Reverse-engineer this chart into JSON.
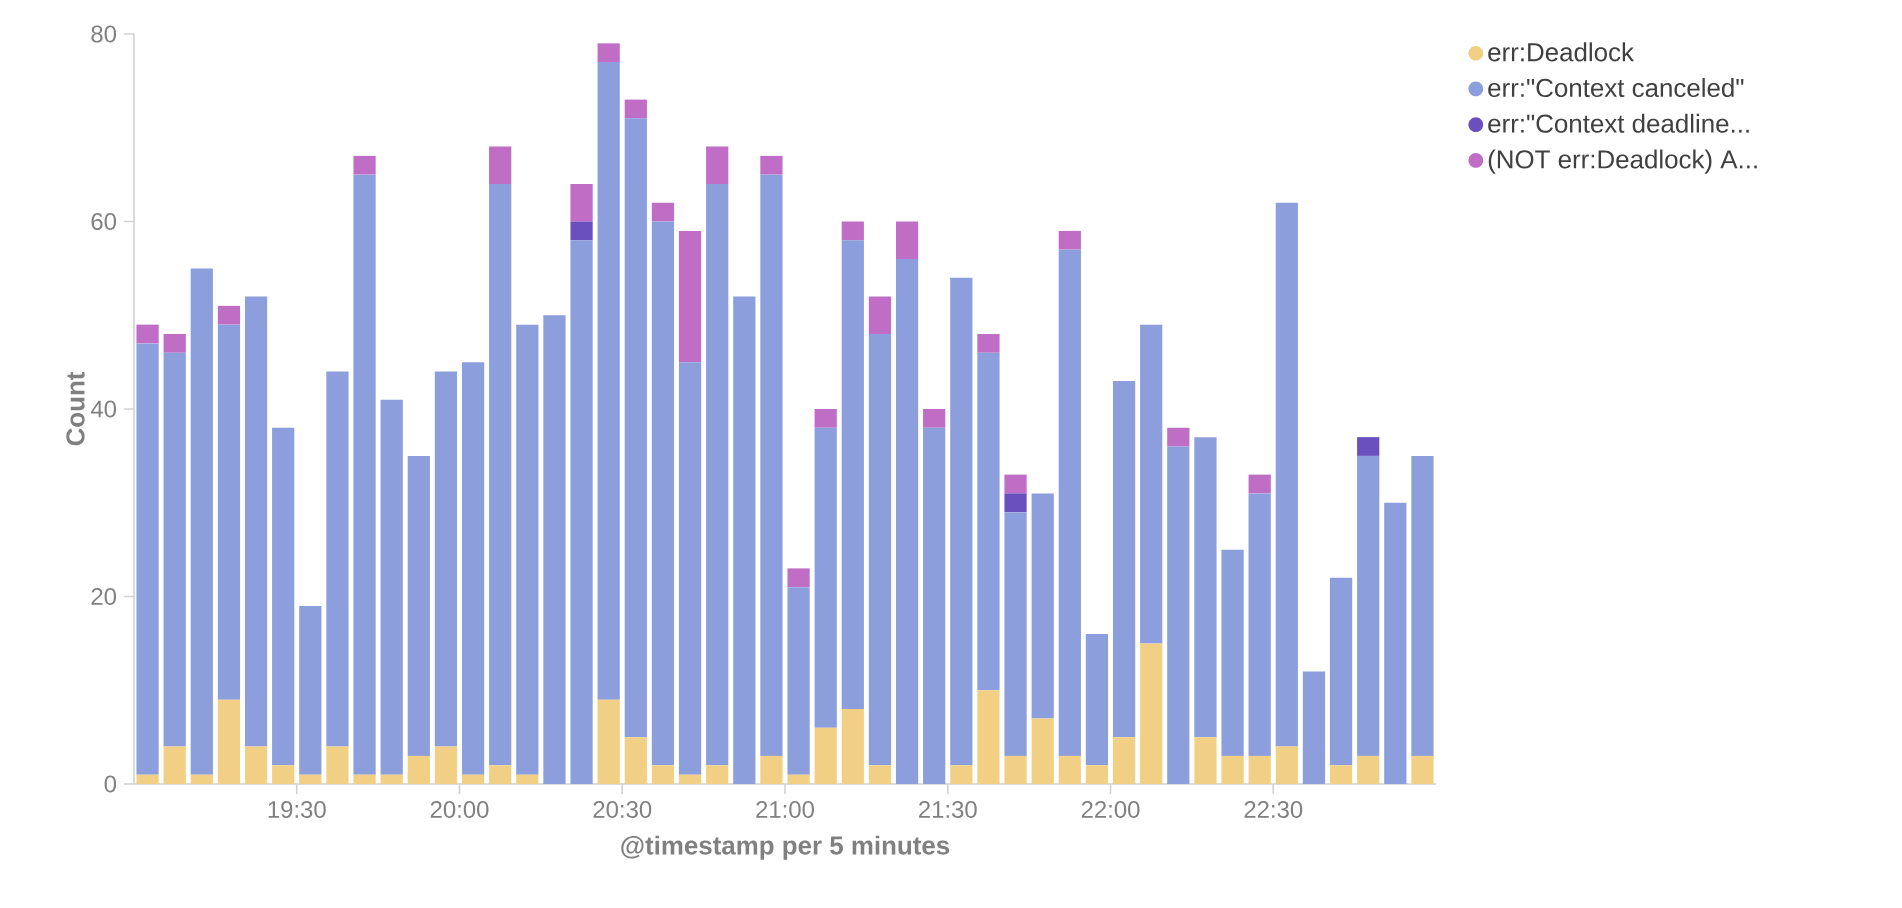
{
  "chart_data": {
    "type": "bar",
    "stacked": true,
    "xlabel": "@timestamp per 5 minutes",
    "ylabel": "Count",
    "x": [
      19.0417,
      19.125,
      19.2083,
      19.2917,
      19.375,
      19.4583,
      19.5417,
      19.625,
      19.7083,
      19.7917,
      19.875,
      19.9583,
      20.0417,
      20.125,
      20.2083,
      20.2917,
      20.375,
      20.4583,
      20.5417,
      20.625,
      20.7083,
      20.7917,
      20.875,
      20.9583,
      21.0417,
      21.125,
      21.2083,
      21.2917,
      21.375,
      21.4583,
      21.5417,
      21.625,
      21.7083,
      21.7917,
      21.875,
      21.9583,
      22.0417,
      22.125,
      22.2083,
      22.2917,
      22.375,
      22.4583,
      22.5417,
      22.625,
      22.7083,
      22.7917,
      22.875,
      22.9583
    ],
    "series": [
      {
        "name": "err:Deadlock",
        "color": "#f1d086",
        "values": [
          1,
          4,
          1,
          9,
          4,
          2,
          1,
          4,
          1,
          1,
          3,
          4,
          1,
          2,
          1,
          0,
          0,
          9,
          5,
          2,
          1,
          2,
          0,
          3,
          1,
          6,
          8,
          2,
          0,
          0,
          2,
          10,
          3,
          7,
          3,
          2,
          5,
          15,
          0,
          5,
          3,
          3,
          4,
          0,
          2,
          3,
          0,
          3
        ]
      },
      {
        "name": "err:\"Context canceled\"",
        "color": "#8c9edb",
        "values": [
          46,
          42,
          54,
          40,
          48,
          36,
          18,
          40,
          64,
          40,
          32,
          40,
          44,
          62,
          48,
          50,
          58,
          68,
          66,
          58,
          44,
          62,
          52,
          62,
          20,
          32,
          50,
          46,
          56,
          38,
          52,
          36,
          26,
          24,
          54,
          14,
          38,
          34,
          36,
          32,
          22,
          28,
          58,
          12,
          20,
          32,
          30,
          32
        ]
      },
      {
        "name": "err:\"Context deadline...",
        "color": "#6a4fbf",
        "values": [
          0,
          0,
          0,
          0,
          0,
          0,
          0,
          0,
          0,
          0,
          0,
          0,
          0,
          0,
          0,
          0,
          2,
          0,
          0,
          0,
          0,
          0,
          0,
          0,
          0,
          0,
          0,
          0,
          0,
          0,
          0,
          0,
          2,
          0,
          0,
          0,
          0,
          0,
          0,
          0,
          0,
          0,
          0,
          0,
          0,
          2,
          0,
          0
        ]
      },
      {
        "name": "(NOT err:Deadlock) A...",
        "color": "#c06dc6",
        "values": [
          2,
          2,
          0,
          2,
          0,
          0,
          0,
          0,
          2,
          0,
          0,
          0,
          0,
          4,
          0,
          0,
          4,
          2,
          2,
          2,
          14,
          4,
          0,
          2,
          2,
          2,
          2,
          4,
          4,
          2,
          0,
          2,
          2,
          0,
          2,
          0,
          0,
          0,
          2,
          0,
          0,
          2,
          0,
          0,
          0,
          0,
          0,
          0
        ]
      }
    ],
    "xlim": [
      19,
      23
    ],
    "ylim": [
      0,
      80
    ],
    "xticks": [
      {
        "value": 19.5,
        "label": "19:30"
      },
      {
        "value": 20,
        "label": "20:00"
      },
      {
        "value": 20.5,
        "label": "20:30"
      },
      {
        "value": 21,
        "label": "21:00"
      },
      {
        "value": 21.5,
        "label": "21:30"
      },
      {
        "value": 22,
        "label": "22:00"
      },
      {
        "value": 22.5,
        "label": "22:30"
      }
    ],
    "yticks": [
      0,
      20,
      40,
      60,
      80
    ],
    "legend": "top right"
  }
}
